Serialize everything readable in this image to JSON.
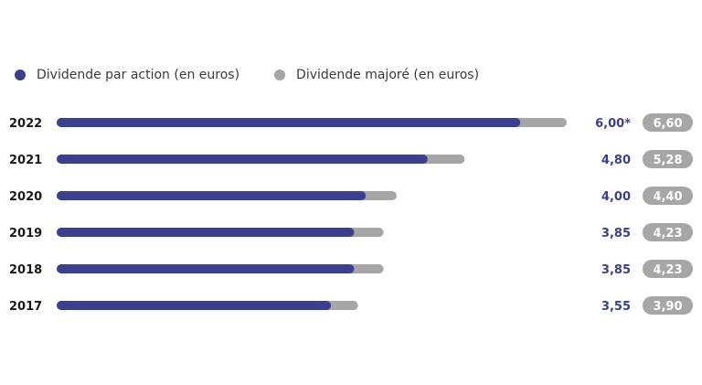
{
  "colors": {
    "primary": "#3b3f8f",
    "secondary": "#a6a6a6",
    "badge_bg": "#a6a6a6"
  },
  "legend": {
    "primary_label": "Dividende par action (en euros)",
    "secondary_label": "Dividende majoré (en euros)"
  },
  "chart_data": {
    "type": "bar",
    "orientation": "horizontal",
    "categories": [
      "2022",
      "2021",
      "2020",
      "2019",
      "2018",
      "2017"
    ],
    "series": [
      {
        "name": "Dividende par action (en euros)",
        "values": [
          6.0,
          4.8,
          4.0,
          3.85,
          3.85,
          3.55
        ],
        "labels": [
          "6,00*",
          "4,80",
          "4,00",
          "3,85",
          "3,85",
          "3,55"
        ]
      },
      {
        "name": "Dividende majoré (en euros)",
        "values": [
          6.6,
          5.28,
          4.4,
          4.23,
          4.23,
          3.9
        ],
        "labels": [
          "6,60",
          "5,28",
          "4,40",
          "4,23",
          "4,23",
          "3,90"
        ]
      }
    ],
    "xlim": [
      0,
      6.6
    ],
    "grid": false,
    "legend_position": "top-left"
  }
}
